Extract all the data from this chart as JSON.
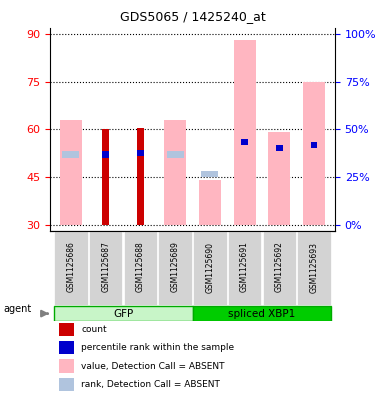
{
  "title": "GDS5065 / 1425240_at",
  "samples": [
    "GSM1125686",
    "GSM1125687",
    "GSM1125688",
    "GSM1125689",
    "GSM1125690",
    "GSM1125691",
    "GSM1125692",
    "GSM1125693"
  ],
  "groups": [
    "GFP",
    "GFP",
    "GFP",
    "GFP",
    "spliced XBP1",
    "spliced XBP1",
    "spliced XBP1",
    "spliced XBP1"
  ],
  "count_values": [
    null,
    60,
    60.5,
    null,
    null,
    null,
    null,
    null
  ],
  "rank_values": [
    null,
    52,
    52.5,
    null,
    null,
    56,
    54,
    55
  ],
  "absent_values": [
    63,
    null,
    null,
    63,
    44,
    88,
    59,
    75
  ],
  "absent_rank_values": [
    52,
    null,
    null,
    52,
    46,
    null,
    null,
    null
  ],
  "ylim_left": [
    28,
    92
  ],
  "yticks_left": [
    30,
    45,
    60,
    75,
    90
  ],
  "bar_width": 0.35,
  "absent_bar_color": "#FFB6C1",
  "absent_rank_color": "#B0C4DE",
  "count_color": "#CC0000",
  "rank_color": "#0000CC",
  "background_color": "#ffffff",
  "label_bg_color": "#d3d3d3",
  "gfp_color_light": "#c8f5c8",
  "gfp_color_dark": "#00cc00",
  "xbp_color": "#00cc00",
  "group_border_color": "#00aa00",
  "legend_items": [
    {
      "label": "count",
      "color": "#CC0000"
    },
    {
      "label": "percentile rank within the sample",
      "color": "#0000CC"
    },
    {
      "label": "value, Detection Call = ABSENT",
      "color": "#FFB6C1"
    },
    {
      "label": "rank, Detection Call = ABSENT",
      "color": "#B0C4DE"
    }
  ]
}
